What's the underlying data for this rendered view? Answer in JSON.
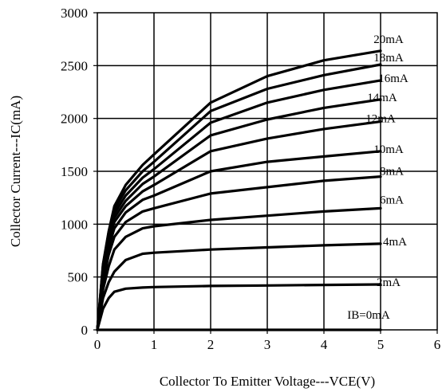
{
  "chart_data": {
    "type": "line",
    "title": "",
    "xlabel": "Collector To Emitter Voltage---VCE(V)",
    "ylabel": "Collector Current---IC(mA)",
    "xlim": [
      0,
      6
    ],
    "ylim": [
      0,
      3000
    ],
    "xticks": [
      "0",
      "1",
      "2",
      "3",
      "4",
      "5",
      "6"
    ],
    "yticks": [
      "0",
      "500",
      "1000",
      "1500",
      "2000",
      "2500",
      "3000"
    ],
    "grid": true,
    "x": [
      0,
      0.1,
      0.2,
      0.3,
      0.5,
      0.8,
      1,
      2,
      3,
      4,
      5
    ],
    "series": [
      {
        "name": "IB=0mA",
        "values": [
          0,
          0,
          0,
          0,
          0,
          0,
          0,
          0,
          0,
          0,
          0
        ]
      },
      {
        "name": "2mA",
        "values": [
          0,
          200,
          300,
          360,
          390,
          400,
          405,
          415,
          420,
          425,
          430
        ]
      },
      {
        "name": "4mA",
        "values": [
          0,
          300,
          450,
          550,
          660,
          720,
          730,
          760,
          780,
          800,
          815
        ]
      },
      {
        "name": "6mA",
        "values": [
          0,
          380,
          600,
          760,
          880,
          960,
          980,
          1040,
          1080,
          1120,
          1150
        ]
      },
      {
        "name": "8mA",
        "values": [
          0,
          450,
          710,
          880,
          1020,
          1120,
          1150,
          1290,
          1350,
          1410,
          1450
        ]
      },
      {
        "name": "10mA",
        "values": [
          0,
          500,
          780,
          960,
          1110,
          1230,
          1270,
          1500,
          1590,
          1640,
          1690
        ]
      },
      {
        "name": "12mA",
        "values": [
          0,
          540,
          830,
          1020,
          1170,
          1310,
          1370,
          1690,
          1810,
          1900,
          1970
        ]
      },
      {
        "name": "14mA",
        "values": [
          0,
          570,
          870,
          1060,
          1220,
          1380,
          1450,
          1840,
          1990,
          2100,
          2180
        ]
      },
      {
        "name": "16mA",
        "values": [
          0,
          590,
          900,
          1100,
          1270,
          1440,
          1520,
          1960,
          2150,
          2270,
          2360
        ]
      },
      {
        "name": "18mA",
        "values": [
          0,
          610,
          920,
          1140,
          1320,
          1500,
          1590,
          2070,
          2280,
          2410,
          2510
        ]
      },
      {
        "name": "20mA",
        "values": [
          0,
          620,
          930,
          1170,
          1370,
          1560,
          1660,
          2150,
          2400,
          2550,
          2640
        ]
      }
    ]
  }
}
